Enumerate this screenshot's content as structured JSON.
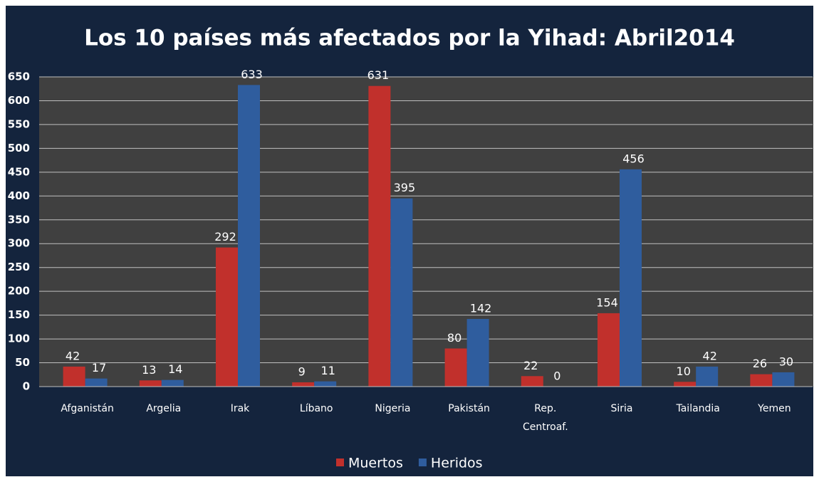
{
  "chart_data": {
    "type": "bar",
    "title": "Los 10 países más afectados por la Yihad: Abril2014",
    "categories": [
      "Afganistán",
      "Argelia",
      "Irak",
      "Líbano",
      "Nigeria",
      "Pakistán",
      "Rep. Centroaf.",
      "Siria",
      "Tailandia",
      "Yemen"
    ],
    "series": [
      {
        "name": "Muertos",
        "color": "#c1302c",
        "values": [
          42,
          13,
          292,
          9,
          631,
          80,
          22,
          154,
          10,
          26
        ]
      },
      {
        "name": "Heridos",
        "color": "#2f5d9e",
        "values": [
          17,
          14,
          633,
          11,
          395,
          142,
          0,
          456,
          42,
          30
        ]
      }
    ],
    "ylim": [
      0,
      650
    ],
    "yticks": [
      0,
      50,
      100,
      150,
      200,
      250,
      300,
      350,
      400,
      450,
      500,
      550,
      600,
      650
    ],
    "grid": true,
    "legend": "bottom"
  }
}
